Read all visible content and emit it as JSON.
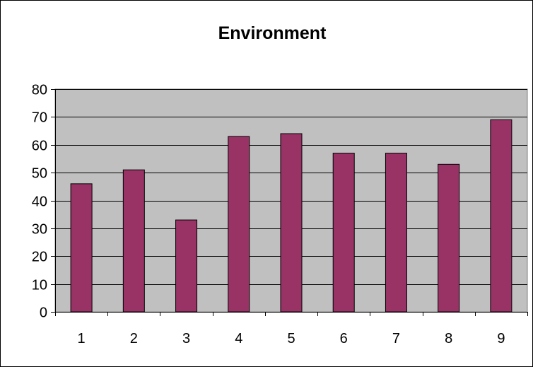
{
  "chart_data": {
    "type": "bar",
    "title": "Environment",
    "xlabel": "",
    "ylabel": "",
    "categories": [
      "1",
      "2",
      "3",
      "4",
      "5",
      "6",
      "7",
      "8",
      "9"
    ],
    "values": [
      46,
      51,
      33,
      63,
      64,
      57,
      57,
      53,
      69
    ],
    "ylim": [
      0,
      80
    ],
    "yticks": [
      0,
      10,
      20,
      30,
      40,
      50,
      60,
      70,
      80
    ],
    "grid": true,
    "legend": "none",
    "colors": {
      "bar_fill": "#993366",
      "bar_stroke": "#000000",
      "plot_background": "#c0c0c0",
      "gridline": "#000000"
    }
  }
}
